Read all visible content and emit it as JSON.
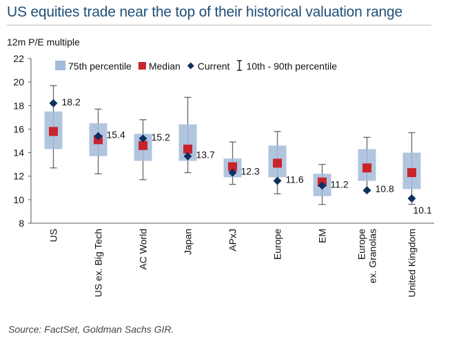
{
  "title": "US equities trade near the top of their historical valuation range",
  "unit_label": "12m P/E multiple",
  "source": "Source: FactSet, Goldman Sachs GIR.",
  "colors": {
    "box": "#a3bbd9",
    "median": "#c9242c",
    "current": "#0f2f5e",
    "whisker": "#666666",
    "title": "#1f4e79"
  },
  "chart_data": {
    "type": "box",
    "title": "US equities trade near the top of their historical valuation range",
    "ylabel": "12m P/E multiple",
    "ylim": [
      8,
      22
    ],
    "yticks": [
      8,
      10,
      12,
      14,
      16,
      18,
      20,
      22
    ],
    "legend": [
      {
        "key": "box",
        "label": "75th percentile"
      },
      {
        "key": "median",
        "label": "Median"
      },
      {
        "key": "current",
        "label": "Current"
      },
      {
        "key": "whisker",
        "label": "10th - 90th percentile"
      }
    ],
    "categories": [
      {
        "name": [
          "US"
        ],
        "p10": 12.7,
        "p25": 14.3,
        "p75": 17.5,
        "p90": 19.7,
        "median": 15.8,
        "current": 18.2,
        "current_label": "18.2",
        "label_pos": "right-up"
      },
      {
        "name": [
          "US ex. Big Tech"
        ],
        "p10": 12.2,
        "p25": 13.7,
        "p75": 16.5,
        "p90": 17.7,
        "median": 15.1,
        "current": 15.4,
        "current_label": "15.4",
        "label_pos": "right-up"
      },
      {
        "name": [
          "AC World"
        ],
        "p10": 11.7,
        "p25": 13.3,
        "p75": 15.6,
        "p90": 16.8,
        "median": 14.6,
        "current": 15.2,
        "current_label": "15.2",
        "label_pos": "right-up"
      },
      {
        "name": [
          "Japan"
        ],
        "p10": 12.3,
        "p25": 13.3,
        "p75": 16.4,
        "p90": 18.7,
        "median": 14.3,
        "current": 13.7,
        "current_label": "13.7",
        "label_pos": "right-up"
      },
      {
        "name": [
          "APxJ"
        ],
        "p10": 11.3,
        "p25": 11.9,
        "p75": 13.5,
        "p90": 14.9,
        "median": 12.8,
        "current": 12.3,
        "current_label": "12.3",
        "label_pos": "right-up"
      },
      {
        "name": [
          "Europe"
        ],
        "p10": 10.5,
        "p25": 11.9,
        "p75": 14.6,
        "p90": 15.8,
        "median": 13.1,
        "current": 11.6,
        "current_label": "11.6",
        "label_pos": "right-up"
      },
      {
        "name": [
          "EM"
        ],
        "p10": 9.6,
        "p25": 10.3,
        "p75": 12.2,
        "p90": 13.0,
        "median": 11.5,
        "current": 11.2,
        "current_label": "11.2",
        "label_pos": "right-up"
      },
      {
        "name": [
          "Europe",
          "ex. Granolas"
        ],
        "p10": 10.7,
        "p25": 11.6,
        "p75": 14.3,
        "p90": 15.3,
        "median": 12.7,
        "current": 10.8,
        "current_label": "10.8",
        "label_pos": "right-up"
      },
      {
        "name": [
          "United Kingdom"
        ],
        "p10": 9.6,
        "p25": 10.9,
        "p75": 14.0,
        "p90": 15.7,
        "median": 12.3,
        "current": 10.1,
        "current_label": "10.1",
        "label_pos": "below"
      }
    ]
  }
}
